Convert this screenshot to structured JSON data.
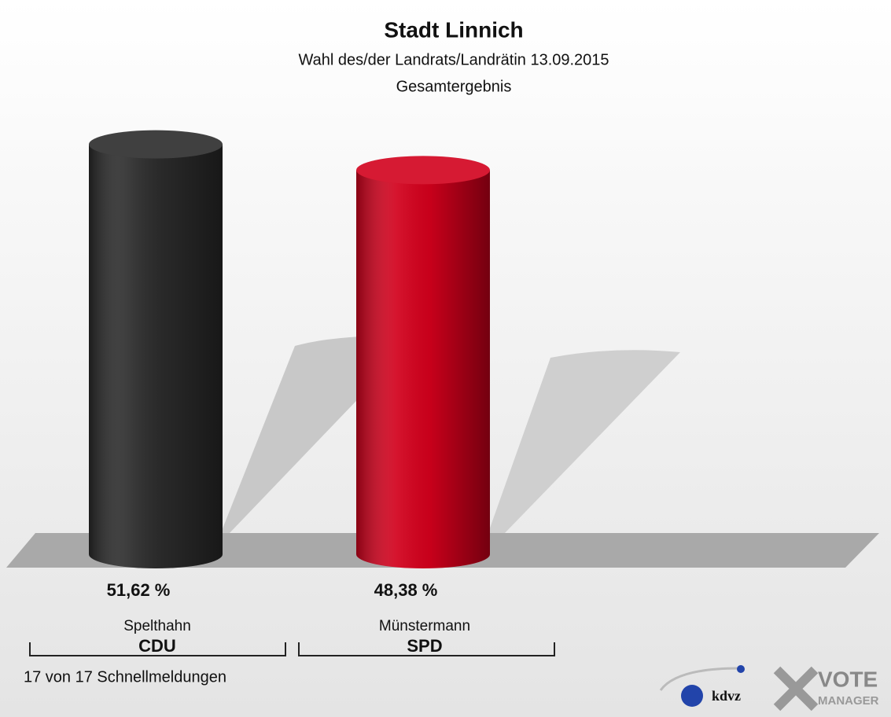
{
  "chart_data": {
    "type": "bar",
    "title": "Stadt Linnich",
    "subtitle": [
      "Wahl des/der Landrats/Landrätin 13.09.2015",
      "Gesamtergebnis"
    ],
    "categories": [
      "Spelthahn",
      "Münstermann"
    ],
    "parties": [
      "CDU",
      "SPD"
    ],
    "values": [
      51.62,
      48.38
    ],
    "value_labels": [
      "51,62 %",
      "48,38 %"
    ],
    "colors": [
      "#2b2b2b",
      "#d2001c"
    ],
    "footnote": "17 von 17 Schnellmeldungen",
    "logo": [
      "kdvz",
      "VOTE",
      "MANAGER"
    ]
  }
}
